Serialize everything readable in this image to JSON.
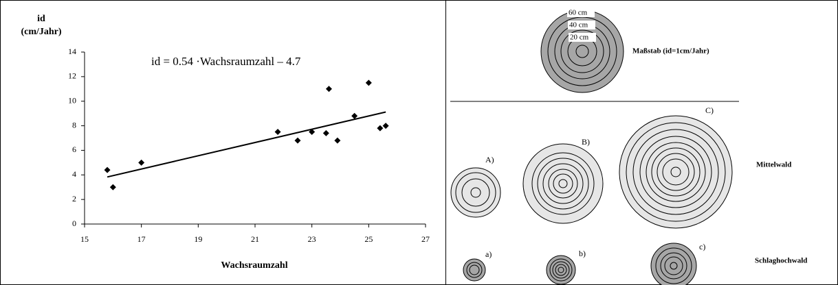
{
  "chart_data": {
    "type": "scatter",
    "ylabel": [
      "id",
      "(cm/Jahr)"
    ],
    "xlabel": "Wachsraumzahl",
    "annotation": "id = 0.54  ·Wachsraumzahl – 4.7",
    "xlim": [
      15,
      27
    ],
    "xticks": [
      15,
      17,
      19,
      21,
      23,
      25,
      27
    ],
    "ylim": [
      0,
      14
    ],
    "yticks": [
      0,
      2,
      4,
      6,
      8,
      10,
      12,
      14
    ],
    "series": [
      {
        "color": "#000000",
        "x": [
          15.8,
          16,
          17,
          21.8,
          22.5,
          23,
          23.5,
          23.6,
          23.9,
          24.5,
          25,
          25.4,
          25.6
        ],
        "values": [
          4.4,
          3.0,
          5.0,
          7.5,
          6.8,
          7.5,
          7.4,
          11.0,
          6.8,
          8.8,
          11.5,
          7.8,
          8.0
        ]
      }
    ],
    "trendline": {
      "color": "#000000",
      "x": [
        15.8,
        25.6
      ],
      "values": [
        3.83,
        9.12
      ]
    }
  },
  "diagram": {
    "scale": {
      "labels": [
        "60 cm",
        "40 cm",
        "20 cm"
      ],
      "title": "Maßstab (id=1cm/Jahr)"
    },
    "groups": [
      {
        "name": "Mittelwald",
        "items": [
          "A)",
          "B)",
          "C)"
        ]
      },
      {
        "name": "Schlaghochwald",
        "items": [
          "a)",
          "b)",
          "c)"
        ]
      }
    ]
  }
}
